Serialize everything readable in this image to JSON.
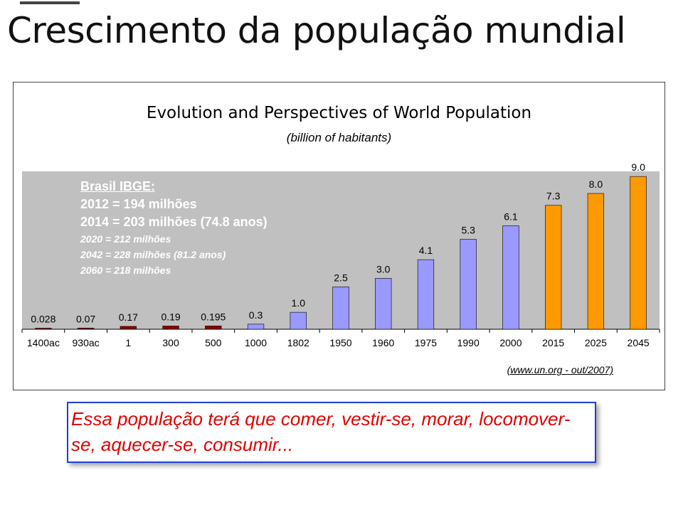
{
  "slide": {
    "title": "Crescimento da população mundial"
  },
  "chart_data": {
    "type": "bar",
    "title": "Evolution and Perspectives of World Population",
    "subtitle": "(billion of habitants)",
    "xlabel": "",
    "ylabel": "",
    "ylim": [
      0,
      9.3
    ],
    "grid": false,
    "categories": [
      "1400ac",
      "930ac",
      "1",
      "300",
      "500",
      "1000",
      "1802",
      "1950",
      "1960",
      "1975",
      "1990",
      "2000",
      "2015",
      "2025",
      "2045"
    ],
    "values": [
      0.028,
      0.07,
      0.17,
      0.19,
      0.195,
      0.3,
      1.0,
      2.5,
      3.0,
      4.1,
      5.3,
      6.1,
      7.3,
      8.0,
      9.0
    ],
    "value_labels": [
      "0.028",
      "0.07",
      "0.17",
      "0.19",
      "0.195",
      "0.3",
      "1.0",
      "2.5",
      "3.0",
      "4.1",
      "5.3",
      "6.1",
      "7.3",
      "8.0",
      "9.0"
    ],
    "bar_colors": [
      "#8b0000",
      "#8b0000",
      "#8b0000",
      "#8b0000",
      "#8b0000",
      "#9999ff",
      "#9999ff",
      "#9999ff",
      "#9999ff",
      "#9999ff",
      "#9999ff",
      "#9999ff",
      "#ff9900",
      "#ff9900",
      "#ff9900"
    ],
    "plot_background": "#c0c0c0",
    "source": "(www.un.org - out/2007)"
  },
  "annotation": {
    "heading": "Brasil IBGE:",
    "lines_bold": [
      "2012 = 194 milhões",
      "2014 = 203 milhões (74.8 anos)"
    ],
    "lines_italic": [
      "2020  = 212 milhões",
      "2042  = 228 milhões (81.2 anos)",
      "2060  = 218 milhões"
    ]
  },
  "callout": {
    "text": "Essa população terá que comer, vestir-se, morar, locomover-se, aquecer-se, consumir..."
  }
}
